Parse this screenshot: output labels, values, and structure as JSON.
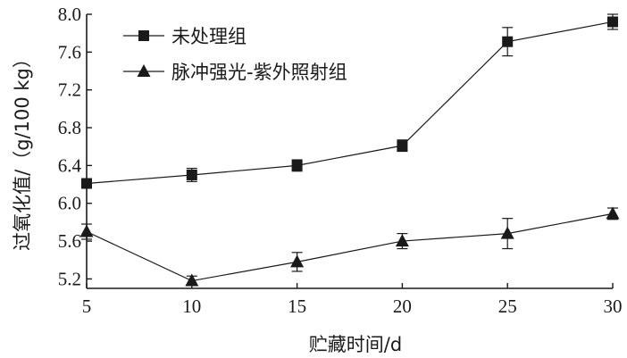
{
  "chart_data": {
    "type": "line",
    "xlabel": "贮藏时间/d",
    "ylabel": "过氧化值/（g/100 kg）",
    "x": [
      5,
      10,
      15,
      20,
      25,
      30
    ],
    "xlim": [
      5,
      30
    ],
    "ylim": [
      5.1,
      8.0
    ],
    "xticks": [
      5,
      10,
      15,
      20,
      25,
      30
    ],
    "xtick_labels": [
      "5",
      "10",
      "15",
      "20",
      "25",
      "30"
    ],
    "yticks": [
      5.2,
      5.6,
      6.0,
      6.4,
      6.8,
      7.2,
      7.6,
      8.0
    ],
    "ytick_labels": [
      "5.2",
      "5.6",
      "6.0",
      "6.4",
      "6.8",
      "7.2",
      "7.6",
      "8.0"
    ],
    "grid": false,
    "legend_position": "top-left",
    "series": [
      {
        "name": "未处理组",
        "marker": "square",
        "color": "#1a1a1a",
        "values": [
          6.21,
          6.3,
          6.4,
          6.61,
          7.71,
          7.92
        ],
        "errors": [
          0.04,
          0.07,
          0.06,
          0.06,
          0.15,
          0.08
        ]
      },
      {
        "name": "脉冲强光-紫外照射组",
        "marker": "triangle",
        "color": "#1a1a1a",
        "values": [
          5.7,
          5.18,
          5.38,
          5.6,
          5.68,
          5.89
        ],
        "errors": [
          0.08,
          0.05,
          0.1,
          0.08,
          0.16,
          0.06
        ]
      }
    ]
  }
}
